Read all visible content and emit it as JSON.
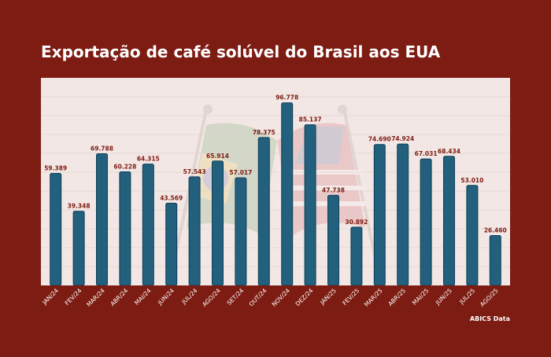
{
  "title": "Exportação de café solúvel do Brasil aos EUA",
  "source": "ABICS Data",
  "colors": {
    "background": "#7d1c12",
    "plot_background": "#f3e7e5",
    "bar": "#22607e",
    "bar_outline": "#0f3f58",
    "value_label": "#7d1c12",
    "axis_label": "#ffffff"
  },
  "chart_data": {
    "type": "bar",
    "title": "Exportação de café solúvel do Brasil aos EUA",
    "xlabel": "",
    "ylabel": "",
    "ylim": [
      0,
      110
    ],
    "grid": true,
    "categories": [
      "JAN/24",
      "FEV/24",
      "MAR/24",
      "ABR/24",
      "MAI/24",
      "JUN/24",
      "JUL/24",
      "AGO/24",
      "SET/24",
      "OUT/24",
      "NOV/24",
      "DEZ/24",
      "JAN/25",
      "FEV/25",
      "MAR/25",
      "ABR/25",
      "MAI/25",
      "JUN/25",
      "JUL/25",
      "AGO/25"
    ],
    "values": [
      59.389,
      39.348,
      69.788,
      60.228,
      64.315,
      43.569,
      57.543,
      65.914,
      57.017,
      78.375,
      96.778,
      85.137,
      47.738,
      30.892,
      74.69,
      74.924,
      67.031,
      68.434,
      53.01,
      26.46
    ],
    "value_labels": [
      "59.389",
      "39.348",
      "69.788",
      "60.228",
      "64.315",
      "43.569",
      "57.543",
      "65.914",
      "57.017",
      "78.375",
      "96.778",
      "85.137",
      "47.738",
      "30.892",
      "74.690",
      "74.924",
      "67.031",
      "68.434",
      "53.010",
      "26.460"
    ]
  }
}
